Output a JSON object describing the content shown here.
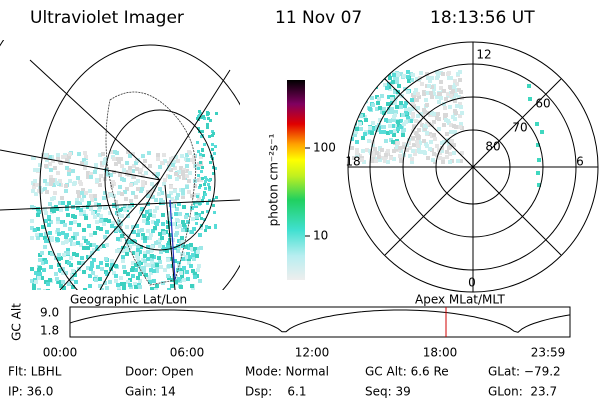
{
  "header": {
    "instrument": "Ultraviolet Imager",
    "date": "11 Nov 07",
    "time": "18:13:56 UT"
  },
  "left_map": {
    "label": "Geographic Lat/Lon"
  },
  "colorbar": {
    "label": "photon cm⁻²s⁻¹",
    "ticks": [
      "100",
      "10"
    ]
  },
  "polar_plot": {
    "label": "Apex MLat/MLT",
    "mlt_labels": [
      "12",
      "18",
      "6",
      "0"
    ],
    "lat_labels": [
      "60",
      "70",
      "80"
    ]
  },
  "altitude_plot": {
    "axis_label": "GC Alt",
    "ticks": [
      "9.0",
      "1.8"
    ],
    "times": [
      "00:00",
      "06:00",
      "12:00",
      "18:00",
      "23:59"
    ]
  },
  "footer": {
    "rows": [
      [
        "Flt: LBHL",
        "Door: Open",
        "Mode: Normal",
        "GC Alt: 6.6 Re",
        "GLat: −79.2"
      ],
      [
        "IP: 36.0",
        "Gain: 14",
        "Dsp:    6.1",
        "Seq: 39",
        "GLon:  23.7"
      ]
    ]
  }
}
